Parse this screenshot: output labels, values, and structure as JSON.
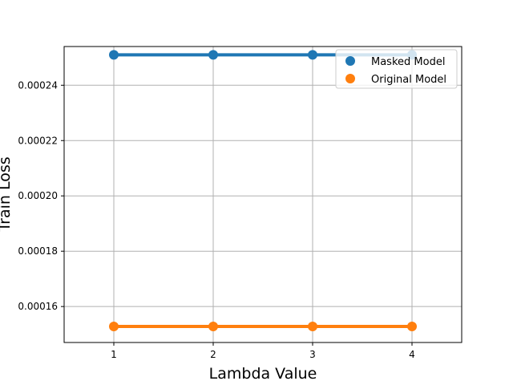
{
  "chart_data": {
    "type": "line",
    "title": "",
    "xlabel": "Lambda Value",
    "ylabel": "Train Loss",
    "x": [
      1,
      2,
      3,
      4
    ],
    "xticks": [
      "1",
      "2",
      "3",
      "4"
    ],
    "yticks": [
      "0.00016",
      "0.00018",
      "0.00020",
      "0.00022",
      "0.00024"
    ],
    "xlim": [
      0.5,
      4.5
    ],
    "ylim": [
      0.000147,
      0.000254
    ],
    "grid": true,
    "legend_position": "top-right",
    "series": [
      {
        "name": "Masked Model",
        "values": [
          0.000251,
          0.000251,
          0.000251,
          0.000251
        ],
        "color": "#1f77b4"
      },
      {
        "name": "Original Model",
        "values": [
          0.0001528,
          0.0001528,
          0.0001528,
          0.0001528
        ],
        "color": "#ff7f0e"
      }
    ]
  }
}
